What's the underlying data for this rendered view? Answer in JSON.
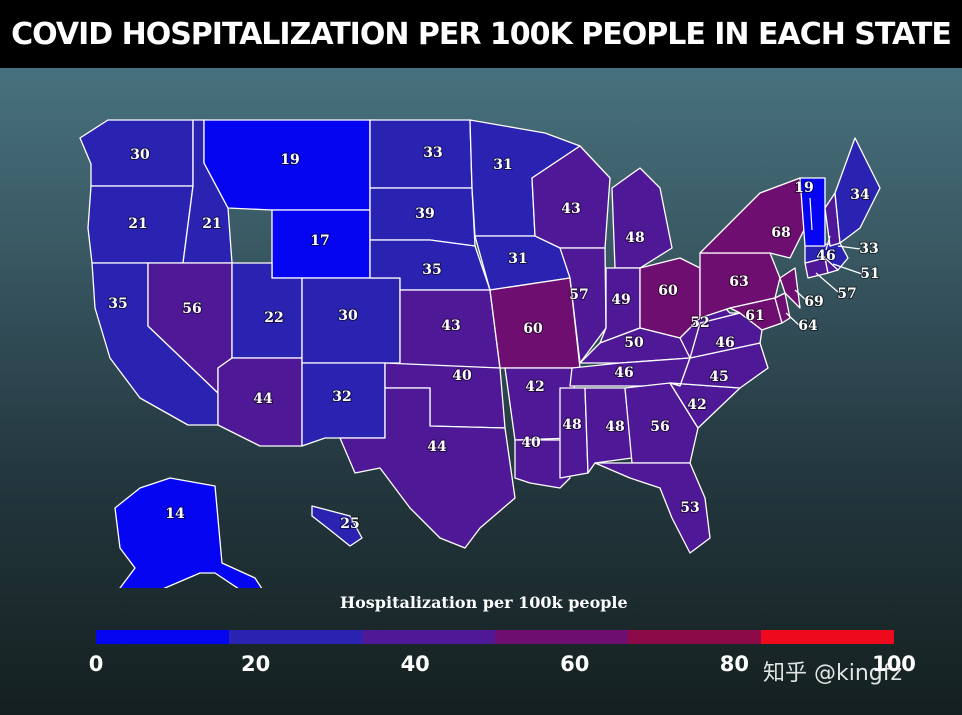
{
  "title": "COVID HOSPITALIZATION PER 100K PEOPLE IN EACH STATE",
  "legend": {
    "title": "Hospitalization per 100k people",
    "ticks": [
      "0",
      "20",
      "40",
      "60",
      "80",
      "100"
    ],
    "segment_colors": [
      "#0505f2",
      "#2a22b0",
      "#4e1896",
      "#6e0e70",
      "#8d0a48",
      "#ee0a1c"
    ]
  },
  "watermark": "知乎 @kingfz",
  "chart_data": {
    "type": "choropleth",
    "title": "COVID HOSPITALIZATION PER 100K PEOPLE IN EACH STATE",
    "legend_title": "Hospitalization per 100k people",
    "scale_range": [
      0,
      100
    ],
    "values": {
      "WA": 30,
      "OR": 21,
      "CA": 35,
      "ID": 21,
      "NV": 56,
      "MT": 19,
      "WY": 17,
      "UT": 22,
      "AZ": 44,
      "CO": 30,
      "NM": 32,
      "ND": 33,
      "SD": 39,
      "NE": 35,
      "KS": 43,
      "OK": 40,
      "TX": 44,
      "MN": 31,
      "IA": 31,
      "MO": 60,
      "AR": 42,
      "LA": 40,
      "WI": 43,
      "IL": 57,
      "MI": 48,
      "IN": 49,
      "OH": 60,
      "KY": 50,
      "TN": 46,
      "MS": 48,
      "AL": 48,
      "GA": 56,
      "FL": 53,
      "SC": 42,
      "NC": 45,
      "VA": 46,
      "WV": 52,
      "PA": 63,
      "NY": 68,
      "MD": 61,
      "DE": 64,
      "NJ": 69,
      "CT": 57,
      "RI": 51,
      "MA": 33,
      "NH": 46,
      "VT": 19,
      "ME": 34,
      "AK": 14,
      "HI": 25
    }
  }
}
